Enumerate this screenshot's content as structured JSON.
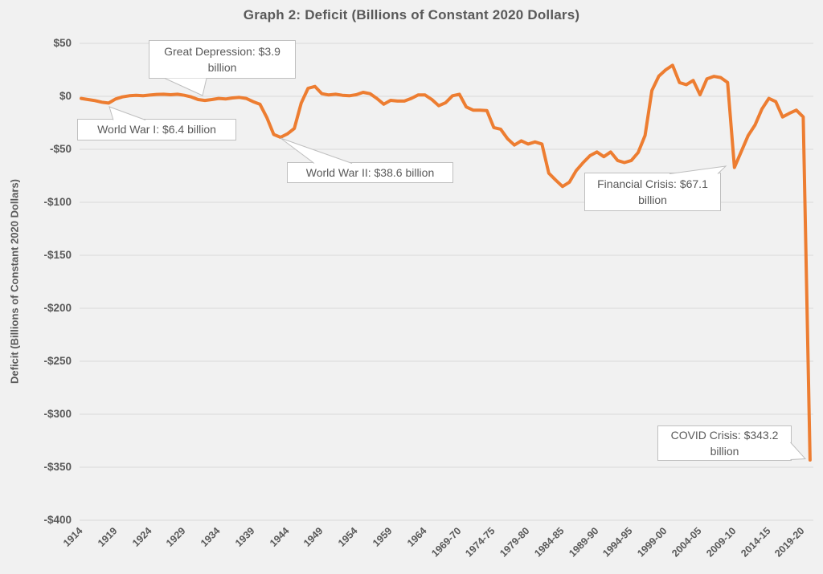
{
  "title": "Graph 2: Deficit (Billions of Constant 2020 Dollars)",
  "colors": {
    "background": "#f1f1f1",
    "gridline": "#d9d9d9",
    "line": "#ED7D31",
    "text": "#595959",
    "callout_border": "#bfbfbf",
    "callout_background": "#ffffff"
  },
  "chart_data": {
    "type": "line",
    "title": "Graph 2: Deficit (Billions of Constant 2020 Dollars)",
    "ylabel": "Deficit (Billions of Constant 2020 Dollars)",
    "xlabel": "",
    "ylim": [
      -400,
      50
    ],
    "grid": true,
    "legend": false,
    "series_name": "Deficit",
    "x": [
      1914,
      1915,
      1916,
      1917,
      1918,
      1919,
      1920,
      1921,
      1922,
      1923,
      1924,
      1925,
      1926,
      1927,
      1928,
      1929,
      1930,
      1931,
      1932,
      1933,
      1934,
      1935,
      1936,
      1937,
      1938,
      1939,
      1940,
      1941,
      1942,
      1943,
      1944,
      1945,
      1946,
      1947,
      1948,
      1949,
      1950,
      1951,
      1952,
      1953,
      1954,
      1955,
      1956,
      1957,
      1958,
      1959,
      1960,
      1961,
      1962,
      1963,
      1964,
      1965,
      1966,
      1967,
      1968,
      1969,
      1970,
      1971,
      1972,
      1973,
      1974,
      1975,
      1976,
      1977,
      1978,
      1979,
      1980,
      1981,
      1982,
      1983,
      1984,
      1985,
      1986,
      1987,
      1988,
      1989,
      1990,
      1991,
      1992,
      1993,
      1994,
      1995,
      1996,
      1997,
      1998,
      1999,
      2000,
      2001,
      2002,
      2003,
      2004,
      2005,
      2006,
      2007,
      2008,
      2009,
      2010,
      2011,
      2012,
      2013,
      2014,
      2015,
      2016,
      2017,
      2018,
      2019,
      2020
    ],
    "values": [
      -2.0,
      -3.0,
      -4.0,
      -5.5,
      -6.4,
      -2.5,
      -0.5,
      0.5,
      1.0,
      0.5,
      1.2,
      1.8,
      2.0,
      1.5,
      2.0,
      1.0,
      -0.5,
      -3.0,
      -3.9,
      -3.0,
      -2.0,
      -2.5,
      -1.5,
      -1.0,
      -2.0,
      -5.0,
      -7.5,
      -20.0,
      -36.0,
      -38.6,
      -35.4,
      -30.3,
      -6.3,
      7.6,
      9.3,
      2.5,
      1.3,
      2.0,
      1.0,
      0.5,
      1.5,
      3.8,
      2.5,
      -2.0,
      -7.4,
      -3.8,
      -4.5,
      -4.5,
      -2.0,
      1.3,
      1.3,
      -3.0,
      -8.9,
      -6.0,
      0.5,
      2.0,
      -10.0,
      -13.0,
      -13.0,
      -13.5,
      -29.5,
      -31.0,
      -40.0,
      -46.0,
      -42.0,
      -45.0,
      -43.0,
      -45.0,
      -72.5,
      -79.0,
      -85.1,
      -81.0,
      -70.0,
      -62.5,
      -56.0,
      -52.5,
      -57.0,
      -52.5,
      -60.5,
      -62.5,
      -60.5,
      -53.0,
      -37.0,
      5.5,
      19.0,
      25.0,
      29.3,
      13.0,
      11.0,
      15.0,
      1.5,
      16.5,
      18.9,
      17.7,
      13.0,
      -67.1,
      -52.0,
      -37.0,
      -27.0,
      -12.0,
      -2.0,
      -5.0,
      -19.5,
      -16.0,
      -13.0,
      -19.5,
      -343.2
    ],
    "x_tick_labels": [
      "1914",
      "1919",
      "1924",
      "1929",
      "1934",
      "1939",
      "1944",
      "1949",
      "1954",
      "1959",
      "1964",
      "1969-70",
      "1974-75",
      "1979-80",
      "1984-85",
      "1989-90",
      "1994-95",
      "1999-00",
      "2004-05",
      "2009-10",
      "2014-15",
      "2019-20"
    ],
    "x_tick_every": 5,
    "y_ticks": [
      {
        "value": 50,
        "label": "$50"
      },
      {
        "value": 0,
        "label": "$0"
      },
      {
        "value": -50,
        "label": "-$50"
      },
      {
        "value": -100,
        "label": "-$100"
      },
      {
        "value": -150,
        "label": "-$150"
      },
      {
        "value": -200,
        "label": "-$200"
      },
      {
        "value": -250,
        "label": "-$250"
      },
      {
        "value": -300,
        "label": "-$300"
      },
      {
        "value": -350,
        "label": "-$350"
      },
      {
        "value": -400,
        "label": "-$400"
      }
    ],
    "annotations": [
      {
        "id": "world-war-1",
        "label": "World War I: $6.4 billion",
        "value": -6.4,
        "year": "1918"
      },
      {
        "id": "great-depression",
        "label": "Great Depression: $3.9 billion",
        "value": -3.9,
        "year": "1932"
      },
      {
        "id": "world-war-2",
        "label": "World War II: $38.6 billion",
        "value": -38.6,
        "year": "1943"
      },
      {
        "id": "financial-crisis",
        "label": "Financial Crisis: $67.1 billion",
        "value": -67.1,
        "year": "2009-10"
      },
      {
        "id": "covid-crisis",
        "label": "COVID Crisis: $343.2 billion",
        "value": -343.2,
        "year": "2020-21"
      }
    ]
  }
}
